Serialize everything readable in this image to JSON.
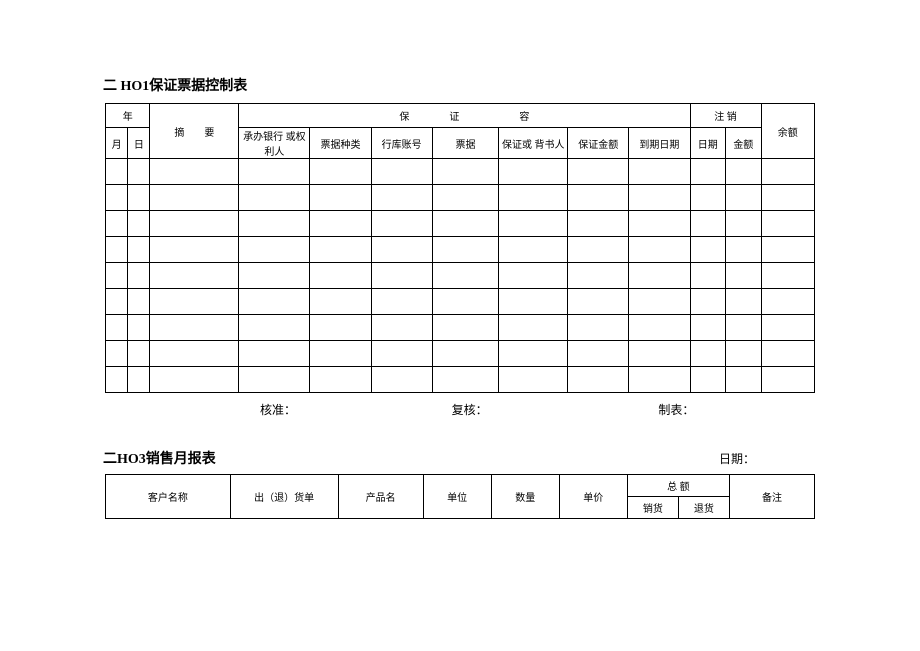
{
  "section1": {
    "title": "二 HO1保证票据控制表",
    "headers": {
      "year": "年",
      "month": "月",
      "day": "日",
      "summary": "摘　　要",
      "guarantee_group": "保　　　　证　　　　　　容",
      "bank": "承办银行 或权利人",
      "note_type": "票据种类",
      "account": "行库账号",
      "notes": "票据",
      "guarantor": "保证或 背书人",
      "guarantee_amount": "保证金额",
      "due_date": "到期日期",
      "cancel_group": "注 销",
      "c_date": "日期",
      "c_amount": "金额",
      "balance": "余额"
    },
    "footer": {
      "approve": "核准：",
      "review": "复核：",
      "prepare": "制表："
    },
    "num_data_rows": 9
  },
  "section2": {
    "title": "二HO3销售月报表",
    "date_label": "日期：",
    "headers": {
      "customer": "客户名称",
      "slip": "出（退）货单",
      "product": "产品名",
      "unit": "单位",
      "qty": "数量",
      "price": "单价",
      "total_group": "总 额",
      "sales": "销货",
      "returns": "退货",
      "remark": "备注"
    }
  },
  "style": {
    "border_color": "#000000",
    "background": "#ffffff",
    "text_color": "#000000",
    "title_fontsize": 14,
    "cell_fontsize": 10
  }
}
